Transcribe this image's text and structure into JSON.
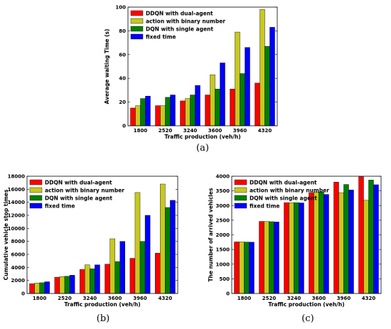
{
  "chart_data": [
    {
      "id": "a",
      "type": "bar",
      "caption": "(a)",
      "xlabel": "Traffic production (veh/h)",
      "ylabel": "Average waiting Time (s)",
      "categories": [
        "1800",
        "2520",
        "3240",
        "3600",
        "3960",
        "4320"
      ],
      "ylim": [
        0,
        100
      ],
      "yticks": [
        0,
        20,
        40,
        60,
        80,
        100
      ],
      "legend_position": "top-left",
      "series": [
        {
          "name": "DDQN with dual-agent",
          "color": "#ff0000",
          "values": [
            15,
            17,
            21,
            26,
            31,
            36
          ]
        },
        {
          "name": "action with binary number",
          "color": "#c8c820",
          "values": [
            17,
            17,
            23,
            43,
            79,
            98
          ]
        },
        {
          "name": "DQN with single agent",
          "color": "#008000",
          "values": [
            23,
            24,
            26,
            31,
            44,
            67
          ]
        },
        {
          "name": "fixed time",
          "color": "#0000ff",
          "values": [
            25,
            26,
            34,
            53,
            66,
            83
          ]
        }
      ]
    },
    {
      "id": "b",
      "type": "bar",
      "caption": "(b)",
      "xlabel": "Traffic production (veh/h)",
      "ylabel": "Cumulative vehicle stop times",
      "categories": [
        "1800",
        "2520",
        "3240",
        "3600",
        "3960",
        "4320"
      ],
      "ylim": [
        0,
        18000
      ],
      "yticks": [
        0,
        2000,
        4000,
        6000,
        8000,
        10000,
        12000,
        14000,
        16000,
        18000
      ],
      "legend_position": "top-left",
      "series": [
        {
          "name": "DDQN with dual-agent",
          "color": "#ff0000",
          "values": [
            1500,
            2500,
            3700,
            4500,
            5400,
            6200
          ]
        },
        {
          "name": "action with binary number",
          "color": "#c8c820",
          "values": [
            1600,
            2600,
            4400,
            8400,
            15500,
            16800
          ]
        },
        {
          "name": "DQN with single agent",
          "color": "#008000",
          "values": [
            1650,
            2650,
            3800,
            4900,
            8000,
            13200
          ]
        },
        {
          "name": "fixed time",
          "color": "#0000ff",
          "values": [
            1800,
            2800,
            4400,
            8000,
            12000,
            14300
          ]
        }
      ]
    },
    {
      "id": "c",
      "type": "bar",
      "caption": "(c)",
      "xlabel": "Traffic production (veh/h)",
      "ylabel": "The number of arrived vehicles",
      "categories": [
        "1800",
        "2520",
        "3240",
        "3600",
        "3960",
        "4320"
      ],
      "ylim": [
        0,
        4000
      ],
      "yticks": [
        0,
        500,
        1000,
        1500,
        2000,
        2500,
        3000,
        3500,
        4000
      ],
      "legend_position": "top-left",
      "series": [
        {
          "name": "DDQN with dual-agent",
          "color": "#ff0000",
          "values": [
            1760,
            2460,
            3100,
            3440,
            3800,
            3980
          ]
        },
        {
          "name": "action with binary number",
          "color": "#c8c820",
          "values": [
            1760,
            2460,
            3100,
            3450,
            3440,
            3180
          ]
        },
        {
          "name": "DQN with single agent",
          "color": "#008000",
          "values": [
            1755,
            2450,
            3100,
            3460,
            3720,
            3870
          ]
        },
        {
          "name": "fixed time",
          "color": "#0000ff",
          "values": [
            1750,
            2440,
            3090,
            3380,
            3530,
            3710
          ]
        }
      ]
    }
  ]
}
